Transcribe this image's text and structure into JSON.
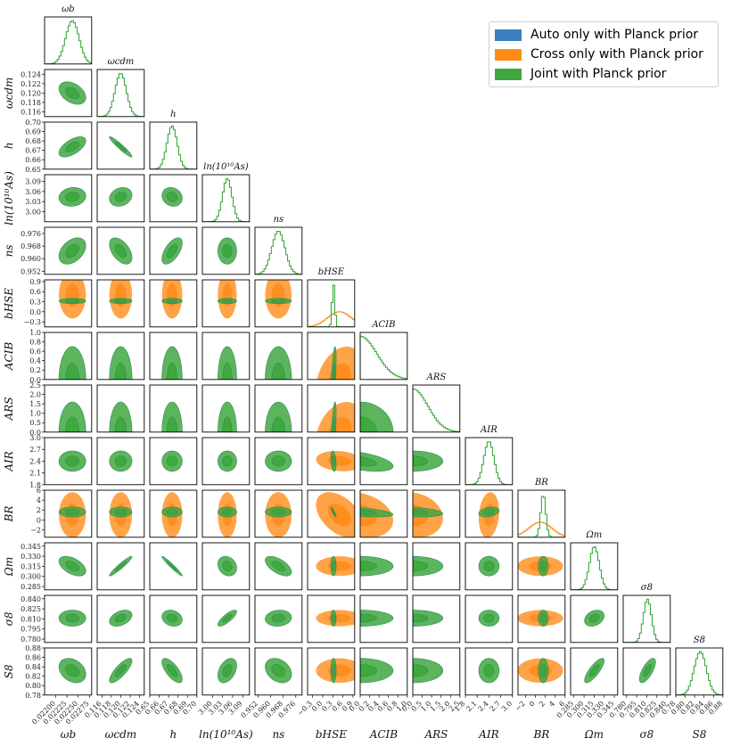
{
  "chart_data": {
    "type": "corner",
    "params": [
      {
        "key": "omega_b",
        "label": "ωb",
        "range": [
          0.02175,
          0.0228
        ],
        "ticks": [
          0.022,
          0.02225,
          0.0225,
          0.02275
        ],
        "tick_labels": [
          "0.02200",
          "0.02225",
          "0.02250",
          "0.02275"
        ],
        "mean": 0.02237,
        "sd": 0.00015
      },
      {
        "key": "omega_cdm",
        "label": "ωcdm",
        "range": [
          0.115,
          0.125
        ],
        "ticks": [
          0.116,
          0.118,
          0.12,
          0.122,
          0.124
        ],
        "tick_labels": [
          "0.116",
          "0.118",
          "0.120",
          "0.122",
          "0.124"
        ],
        "mean": 0.12,
        "sd": 0.0012
      },
      {
        "key": "h",
        "label": "h",
        "range": [
          0.65,
          0.7
        ],
        "ticks": [
          0.65,
          0.66,
          0.67,
          0.68,
          0.69,
          0.7
        ],
        "tick_labels": [
          "0.65",
          "0.66",
          "0.67",
          "0.68",
          "0.69",
          "0.70"
        ],
        "mean": 0.6737,
        "sd": 0.0054
      },
      {
        "key": "ln10As",
        "label": "ln(10¹⁰As)",
        "range": [
          2.97,
          3.11
        ],
        "ticks": [
          3.0,
          3.03,
          3.06,
          3.09
        ],
        "tick_labels": [
          "3.00",
          "3.03",
          "3.06",
          "3.09"
        ],
        "mean": 3.044,
        "sd": 0.014
      },
      {
        "key": "n_s",
        "label": "ns",
        "range": [
          0.95,
          0.98
        ],
        "ticks": [
          0.952,
          0.96,
          0.968,
          0.976
        ],
        "tick_labels": [
          "0.952",
          "0.960",
          "0.968",
          "0.976"
        ],
        "mean": 0.9649,
        "sd": 0.0042
      },
      {
        "key": "b_HSE",
        "label": "bHSE",
        "range": [
          -0.45,
          0.95
        ],
        "ticks": [
          -0.3,
          0.0,
          0.3,
          0.6,
          0.9
        ],
        "tick_labels": [
          "−0.3",
          "0.0",
          "0.3",
          "0.6",
          "0.9"
        ],
        "mean": 0.32,
        "sd": 0.04
      },
      {
        "key": "A_CIB",
        "label": "ACIB",
        "range": [
          0.0,
          1.0
        ],
        "ticks": [
          0.0,
          0.2,
          0.4,
          0.6,
          0.8,
          1.0
        ],
        "tick_labels": [
          "0.0",
          "0.2",
          "0.4",
          "0.6",
          "0.8",
          "1.0"
        ],
        "mean": 0.0,
        "sd": 0.35
      },
      {
        "key": "A_RS",
        "label": "ARS",
        "range": [
          0.0,
          2.5
        ],
        "ticks": [
          0.0,
          0.5,
          1.0,
          1.5,
          2.0,
          2.5
        ],
        "tick_labels": [
          "0.0",
          "0.5",
          "1.0",
          "1.5",
          "2.0",
          "2.5"
        ],
        "mean": 0.0,
        "sd": 0.8
      },
      {
        "key": "A_IR",
        "label": "AIR",
        "range": [
          1.8,
          3.0
        ],
        "ticks": [
          1.8,
          2.1,
          2.4,
          2.7,
          3.0
        ],
        "tick_labels": [
          "1.8",
          "2.1",
          "2.4",
          "2.7",
          "3.0"
        ],
        "mean": 2.4,
        "sd": 0.13
      },
      {
        "key": "B_R",
        "label": "BR",
        "range": [
          -3.5,
          6.0
        ],
        "ticks": [
          -2,
          0,
          2,
          4,
          6
        ],
        "tick_labels": [
          "−2",
          "0",
          "2",
          "4",
          "6"
        ],
        "mean": 1.6,
        "sd": 0.5
      },
      {
        "key": "Omega_m",
        "label": "Ωm",
        "range": [
          0.28,
          0.35
        ],
        "ticks": [
          0.285,
          0.3,
          0.315,
          0.33,
          0.345
        ],
        "tick_labels": [
          "0.285",
          "0.300",
          "0.315",
          "0.330",
          "0.345"
        ],
        "mean": 0.3153,
        "sd": 0.0073
      },
      {
        "key": "sigma_8",
        "label": "σ8",
        "range": [
          0.775,
          0.845
        ],
        "ticks": [
          0.78,
          0.795,
          0.81,
          0.825,
          0.84
        ],
        "tick_labels": [
          "0.780",
          "0.795",
          "0.810",
          "0.825",
          "0.840"
        ],
        "mean": 0.8111,
        "sd": 0.006
      },
      {
        "key": "S_8",
        "label": "S8",
        "range": [
          0.78,
          0.88
        ],
        "ticks": [
          0.78,
          0.8,
          0.82,
          0.84,
          0.86,
          0.88
        ],
        "tick_labels": [
          "0.78",
          "0.80",
          "0.82",
          "0.84",
          "0.86",
          "0.88"
        ],
        "mean": 0.832,
        "sd": 0.013
      }
    ],
    "correlations": {
      "omega_b|omega_cdm": -0.4,
      "omega_b|h": 0.6,
      "omega_b|ln10As": 0.1,
      "omega_b|n_s": 0.4,
      "omega_b|Omega_m": -0.5,
      "omega_b|sigma_8": 0.0,
      "omega_b|S_8": -0.3,
      "omega_cdm|h": -0.95,
      "omega_cdm|ln10As": 0.2,
      "omega_cdm|n_s": -0.5,
      "omega_cdm|Omega_m": 0.95,
      "omega_cdm|sigma_8": 0.4,
      "omega_cdm|S_8": 0.8,
      "h|ln10As": -0.15,
      "h|n_s": 0.6,
      "h|Omega_m": -0.97,
      "h|sigma_8": -0.2,
      "h|S_8": -0.7,
      "ln10As|n_s": 0.0,
      "ln10As|Omega_m": -0.2,
      "ln10As|sigma_8": 0.8,
      "ln10As|S_8": 0.4,
      "n_s|Omega_m": -0.6,
      "n_s|sigma_8": 0.1,
      "n_s|S_8": -0.3,
      "Omega_m|sigma_8": 0.3,
      "Omega_m|S_8": 0.8,
      "sigma_8|S_8": 0.7,
      "b_HSE|A_CIB": 0.6,
      "b_HSE|A_RS": 0.6,
      "b_HSE|A_IR": -0.3,
      "b_HSE|B_R": -0.9,
      "A_CIB|A_IR": -0.5,
      "A_CIB|B_R": -0.5,
      "A_RS|B_R": -0.3,
      "A_IR|B_R": 0.3
    },
    "series": [
      {
        "name": "Auto only with Planck prior",
        "color": "#3a7ebf"
      },
      {
        "name": "Cross only with Planck prior",
        "color": "#ff8c1a",
        "b_HSE": {
          "mean": 0.5,
          "sd": 0.35
        },
        "B_R": {
          "mean": 1.0,
          "sd": 2.3
        }
      },
      {
        "name": "Joint with Planck prior",
        "color": "#3fa83f"
      }
    ],
    "legend_position": "top-right"
  }
}
